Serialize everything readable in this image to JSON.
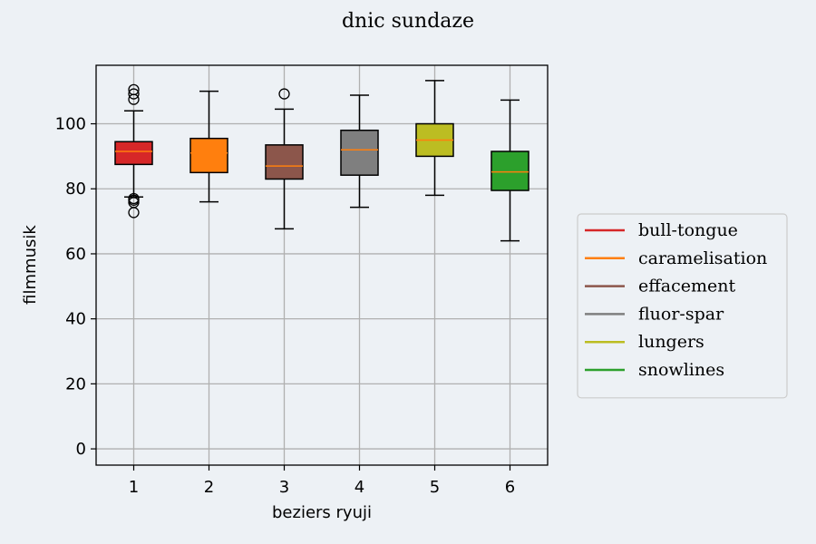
{
  "chart_data": {
    "type": "box",
    "title": "dnic sundaze",
    "xlabel": "beziers ryuji",
    "ylabel": "filmmusik",
    "categories": [
      "1",
      "2",
      "3",
      "4",
      "5",
      "6"
    ],
    "ylim": [
      -5,
      118
    ],
    "yticks": [
      0,
      20,
      40,
      60,
      80,
      100
    ],
    "grid": true,
    "legend_position": "right",
    "median_color": "#ff7f0e",
    "series": [
      {
        "name": "bull-tongue",
        "color": "#d62728",
        "whisker_low": 77.5,
        "q1": 87.5,
        "median": 91.5,
        "q3": 94.5,
        "whisker_high": 104,
        "outliers": [
          72.7,
          75.8,
          76.5,
          77.0,
          107.5,
          109.2,
          110.5
        ]
      },
      {
        "name": "caramelisation",
        "color": "#ff7f0e",
        "whisker_low": 76,
        "q1": 85,
        "median": 91,
        "q3": 95.5,
        "whisker_high": 110,
        "outliers": []
      },
      {
        "name": "effacement",
        "color": "#8c564b",
        "whisker_low": 67.7,
        "q1": 83,
        "median": 87,
        "q3": 93.5,
        "whisker_high": 104.5,
        "outliers": [
          109.2
        ]
      },
      {
        "name": "fluor-spar",
        "color": "#7f7f7f",
        "whisker_low": 74.3,
        "q1": 84.2,
        "median": 92,
        "q3": 98,
        "whisker_high": 108.8,
        "outliers": []
      },
      {
        "name": "lungers",
        "color": "#bcbd22",
        "whisker_low": 78,
        "q1": 90,
        "median": 95,
        "q3": 100,
        "whisker_high": 113.3,
        "outliers": []
      },
      {
        "name": "snowlines",
        "color": "#2ca02c",
        "whisker_low": 64,
        "q1": 79.5,
        "median": 85.2,
        "q3": 91.5,
        "whisker_high": 107.3,
        "outliers": []
      }
    ]
  }
}
